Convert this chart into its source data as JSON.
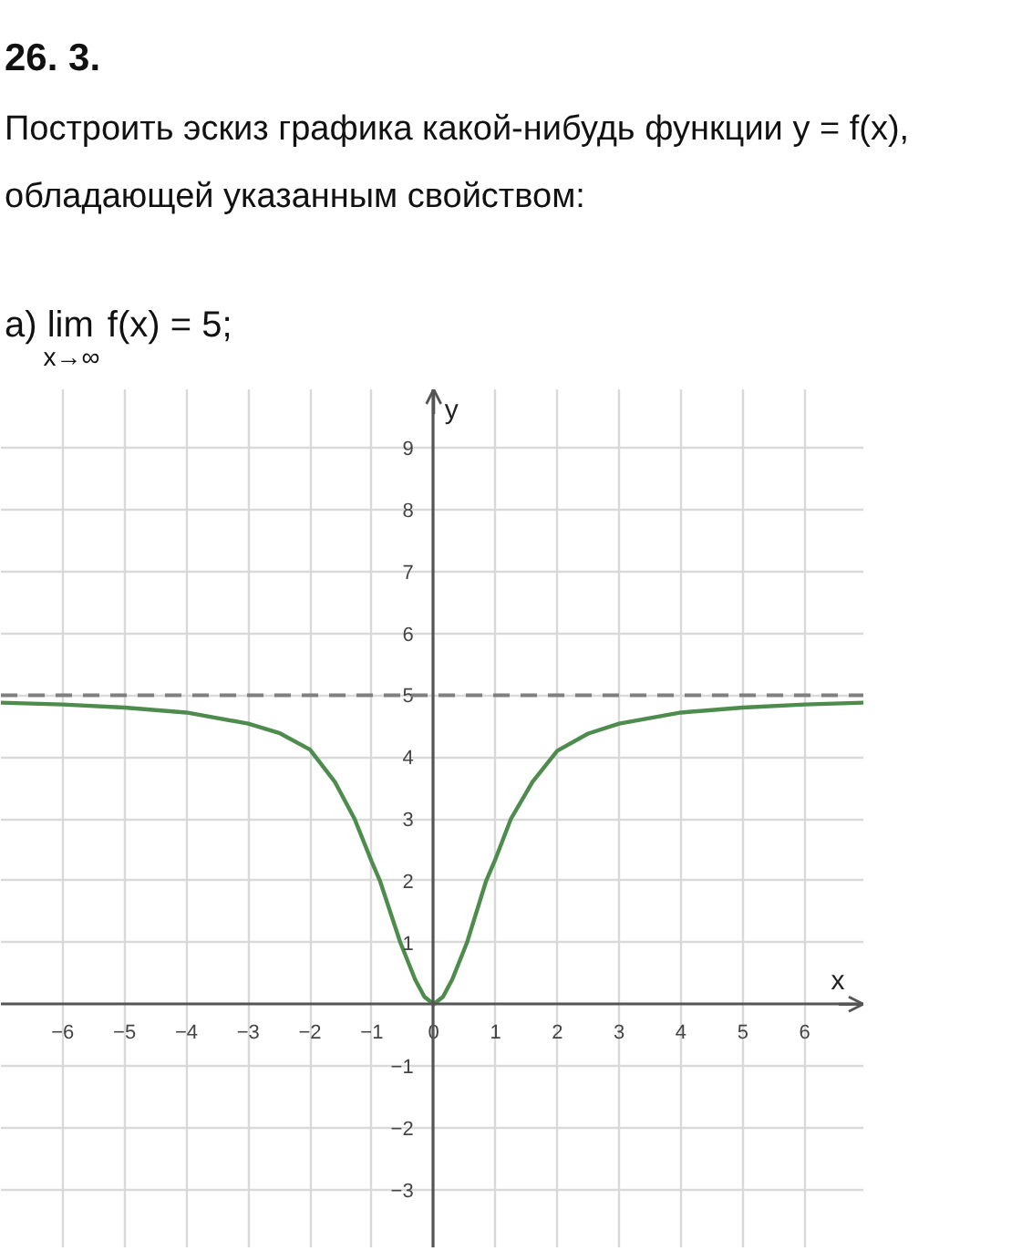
{
  "chart_data": {
    "type": "line",
    "title": "26. 3.",
    "subtitle": "Построить эскиз графика какой-нибудь функции y = f(x), обладающей указанным свойством:",
    "annotations": [
      "а) lim$_{x→∞}$ f(x) = 5;"
    ],
    "xlabel": "x",
    "ylabel": "y",
    "x": [
      -7,
      -6,
      -5,
      -4,
      -3,
      -2.5,
      -2,
      -1.6,
      -1.28,
      -1,
      -0.87,
      -0.54,
      -0.3,
      -0.15,
      0,
      0.15,
      0.3,
      0.54,
      0.85,
      1,
      1.25,
      1.6,
      2,
      2.5,
      3,
      4,
      5,
      6,
      6.95
    ],
    "series": [
      {
        "color": "#4e8c4e",
        "values": [
          4.88,
          4.85,
          4.8,
          4.72,
          4.54,
          4.39,
          4.12,
          3.6,
          3.0,
          2.3,
          2.0,
          1.0,
          0.4,
          0.12,
          0,
          0.12,
          0.4,
          1.0,
          2.0,
          2.35,
          3.0,
          3.6,
          4.1,
          4.38,
          4.54,
          4.72,
          4.8,
          4.85,
          4.88
        ]
      }
    ],
    "xlim": [
      -7,
      6.95
    ],
    "ylim": [
      -3.95,
      9.95
    ],
    "xticks": [
      -6,
      -5,
      -4,
      -3,
      -2,
      -1,
      0,
      1,
      2,
      3,
      4,
      5,
      6
    ],
    "yticks": [
      -3,
      -2,
      -1,
      1,
      2,
      3,
      4,
      5,
      6,
      7,
      8,
      9
    ],
    "ref_lines": [
      {
        "axis": "y",
        "value": 5,
        "color": "#7f7f7f",
        "line_style": "dashed"
      }
    ],
    "grid": true
  }
}
